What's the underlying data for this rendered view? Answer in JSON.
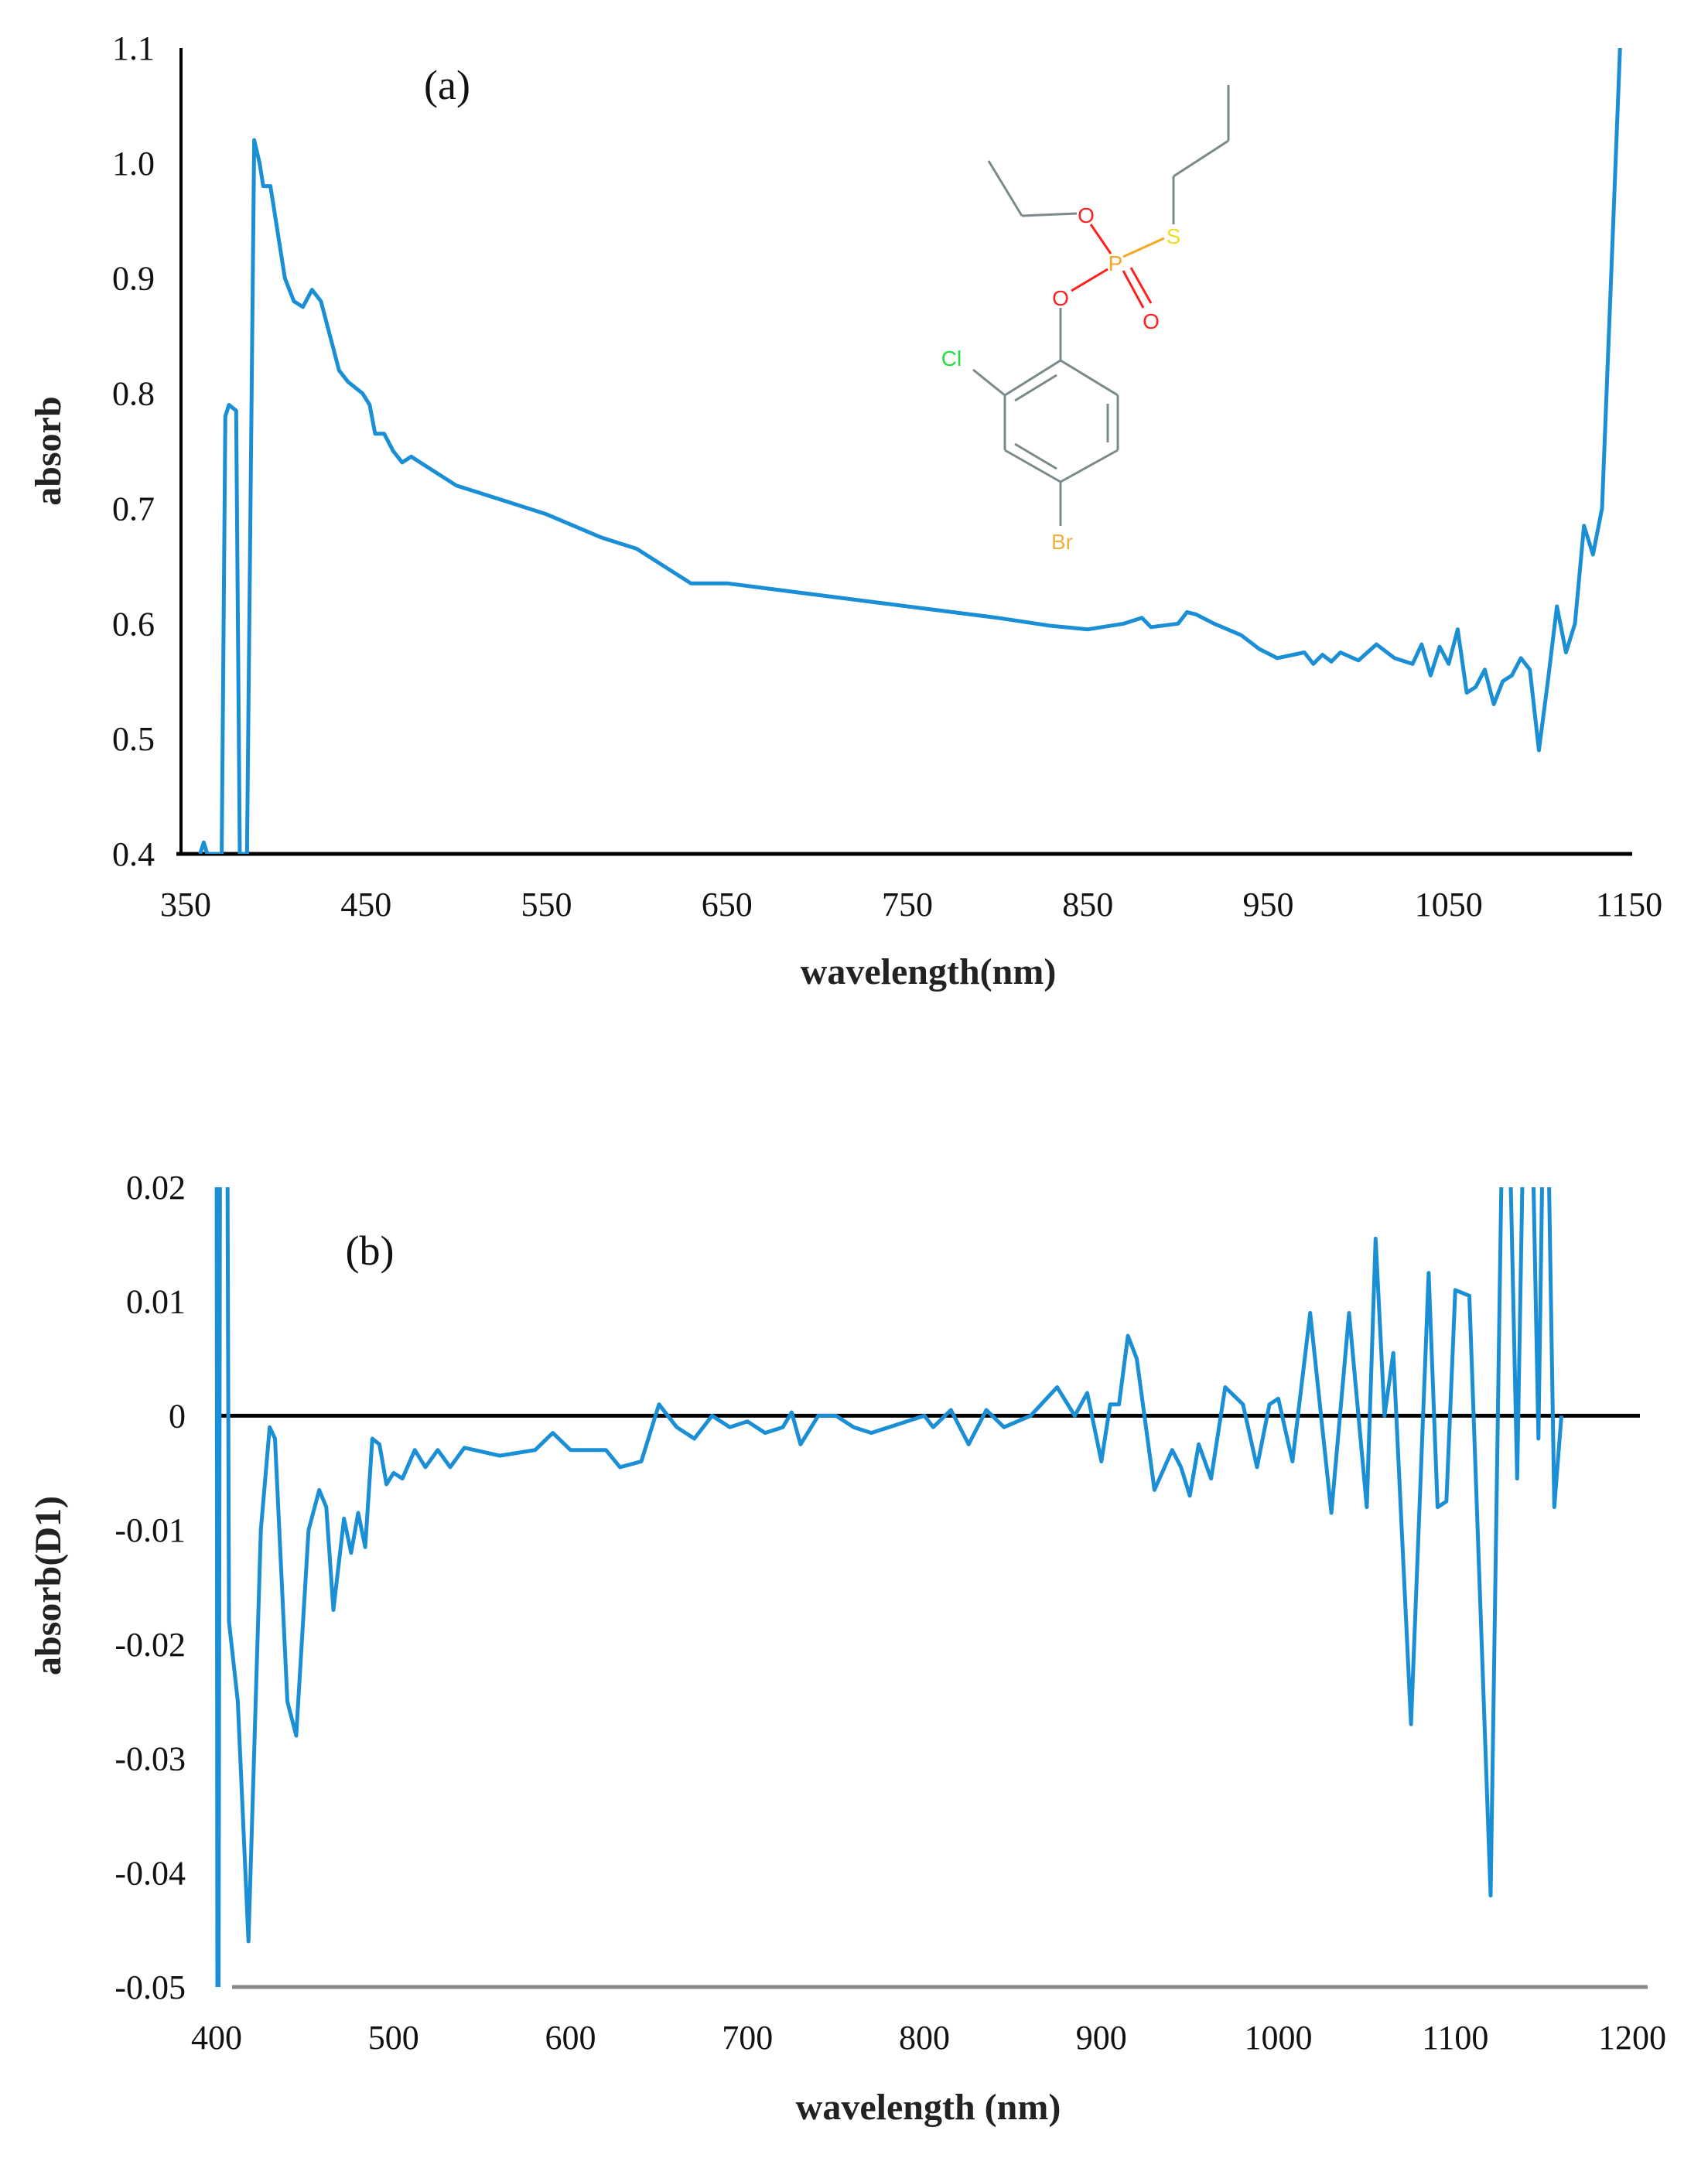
{
  "chart_data": [
    {
      "type": "line",
      "panel_label": "(a)",
      "xlabel": "wavelength(nm)",
      "ylabel": "absorb",
      "xlim": [
        350,
        1150
      ],
      "ylim": [
        0.4,
        1.1
      ],
      "xticks": [
        "350",
        "450",
        "550",
        "650",
        "750",
        "850",
        "950",
        "1050",
        "1150"
      ],
      "yticks": [
        "0.4",
        "0.5",
        "0.6",
        "0.7",
        "0.8",
        "0.9",
        "1.0",
        "1.1"
      ],
      "line_color": "#1a8fd6",
      "grid": false,
      "points": [
        [
          358,
          0.4
        ],
        [
          360,
          0.41
        ],
        [
          362,
          0.4
        ],
        [
          370,
          0.4
        ],
        [
          372,
          0.78
        ],
        [
          374,
          0.79
        ],
        [
          378,
          0.785
        ],
        [
          380,
          0.4
        ],
        [
          384,
          0.4
        ],
        [
          388,
          1.02
        ],
        [
          391,
          1.0
        ],
        [
          393,
          0.98
        ],
        [
          397,
          0.98
        ],
        [
          400,
          0.95
        ],
        [
          405,
          0.9
        ],
        [
          410,
          0.88
        ],
        [
          415,
          0.875
        ],
        [
          420,
          0.89
        ],
        [
          425,
          0.88
        ],
        [
          430,
          0.85
        ],
        [
          435,
          0.82
        ],
        [
          440,
          0.81
        ],
        [
          448,
          0.8
        ],
        [
          452,
          0.79
        ],
        [
          455,
          0.765
        ],
        [
          460,
          0.765
        ],
        [
          465,
          0.75
        ],
        [
          470,
          0.74
        ],
        [
          475,
          0.745
        ],
        [
          480,
          0.74
        ],
        [
          500,
          0.72
        ],
        [
          520,
          0.71
        ],
        [
          550,
          0.695
        ],
        [
          580,
          0.675
        ],
        [
          600,
          0.665
        ],
        [
          620,
          0.645
        ],
        [
          630,
          0.635
        ],
        [
          650,
          0.635
        ],
        [
          700,
          0.625
        ],
        [
          750,
          0.615
        ],
        [
          800,
          0.605
        ],
        [
          830,
          0.598
        ],
        [
          850,
          0.595
        ],
        [
          870,
          0.6
        ],
        [
          880,
          0.605
        ],
        [
          885,
          0.597
        ],
        [
          900,
          0.6
        ],
        [
          905,
          0.61
        ],
        [
          910,
          0.608
        ],
        [
          920,
          0.6
        ],
        [
          935,
          0.59
        ],
        [
          945,
          0.578
        ],
        [
          955,
          0.57
        ],
        [
          970,
          0.575
        ],
        [
          975,
          0.565
        ],
        [
          980,
          0.573
        ],
        [
          985,
          0.567
        ],
        [
          990,
          0.575
        ],
        [
          1000,
          0.568
        ],
        [
          1010,
          0.582
        ],
        [
          1020,
          0.57
        ],
        [
          1030,
          0.565
        ],
        [
          1035,
          0.582
        ],
        [
          1040,
          0.555
        ],
        [
          1045,
          0.58
        ],
        [
          1050,
          0.565
        ],
        [
          1055,
          0.595
        ],
        [
          1060,
          0.54
        ],
        [
          1065,
          0.545
        ],
        [
          1070,
          0.56
        ],
        [
          1075,
          0.53
        ],
        [
          1080,
          0.55
        ],
        [
          1085,
          0.555
        ],
        [
          1090,
          0.57
        ],
        [
          1095,
          0.56
        ],
        [
          1100,
          0.49
        ],
        [
          1105,
          0.55
        ],
        [
          1110,
          0.615
        ],
        [
          1115,
          0.575
        ],
        [
          1120,
          0.6
        ],
        [
          1125,
          0.685
        ],
        [
          1130,
          0.66
        ],
        [
          1135,
          0.7
        ],
        [
          1140,
          0.9
        ],
        [
          1145,
          1.1
        ]
      ],
      "inset_molecule": {
        "atoms": [
          "O",
          "P",
          "S",
          "O",
          "O",
          "Cl",
          "Br"
        ],
        "colors": {
          "O": "#ff2020",
          "P": "#f5a623",
          "S": "#e8e020",
          "Cl": "#20e040",
          "Br": "#f0b040",
          "bond": "#7a8a8a"
        }
      }
    },
    {
      "type": "line",
      "panel_label": "(b)",
      "xlabel": "wavelength (nm)",
      "ylabel": "absorb(D1)",
      "xlim": [
        400,
        1200
      ],
      "ylim": [
        -0.05,
        0.02
      ],
      "xticks": [
        "400",
        "500",
        "600",
        "700",
        "800",
        "900",
        "1000",
        "1100",
        "1200"
      ],
      "yticks": [
        "-0.05",
        "-0.04",
        "-0.03",
        "-0.02",
        "-0.01",
        "0",
        "0.01",
        "0.02"
      ],
      "line_color": "#1a8fd6",
      "zero_line": true,
      "grid": false,
      "points": [
        [
          400,
          0.03
        ],
        [
          400.5,
          -0.06
        ],
        [
          401,
          -0.06
        ],
        [
          402,
          0.03
        ],
        [
          406,
          0.03
        ],
        [
          407,
          -0.018
        ],
        [
          412,
          -0.025
        ],
        [
          418,
          -0.046
        ],
        [
          425,
          -0.01
        ],
        [
          430,
          -0.001
        ],
        [
          433,
          -0.002
        ],
        [
          440,
          -0.025
        ],
        [
          445,
          -0.028
        ],
        [
          452,
          -0.01
        ],
        [
          458,
          -0.0065
        ],
        [
          462,
          -0.008
        ],
        [
          466,
          -0.017
        ],
        [
          472,
          -0.009
        ],
        [
          476,
          -0.012
        ],
        [
          480,
          -0.0085
        ],
        [
          484,
          -0.0115
        ],
        [
          488,
          -0.002
        ],
        [
          492,
          -0.0025
        ],
        [
          496,
          -0.006
        ],
        [
          500,
          -0.005
        ],
        [
          505,
          -0.0055
        ],
        [
          512,
          -0.003
        ],
        [
          518,
          -0.0045
        ],
        [
          525,
          -0.003
        ],
        [
          532,
          -0.0045
        ],
        [
          540,
          -0.0028
        ],
        [
          560,
          -0.0035
        ],
        [
          580,
          -0.003
        ],
        [
          590,
          -0.0015
        ],
        [
          600,
          -0.003
        ],
        [
          620,
          -0.003
        ],
        [
          628,
          -0.0045
        ],
        [
          640,
          -0.004
        ],
        [
          650,
          0.001
        ],
        [
          660,
          -0.001
        ],
        [
          670,
          -0.002
        ],
        [
          680,
          0
        ],
        [
          690,
          -0.001
        ],
        [
          700,
          -0.0005
        ],
        [
          710,
          -0.0015
        ],
        [
          720,
          -0.001
        ],
        [
          725,
          0.0003
        ],
        [
          730,
          -0.0025
        ],
        [
          740,
          0
        ],
        [
          750,
          0
        ],
        [
          760,
          -0.001
        ],
        [
          770,
          -0.0015
        ],
        [
          780,
          -0.001
        ],
        [
          800,
          0
        ],
        [
          805,
          -0.001
        ],
        [
          815,
          0.0005
        ],
        [
          825,
          -0.0025
        ],
        [
          835,
          0.0005
        ],
        [
          845,
          -0.001
        ],
        [
          860,
          0
        ],
        [
          875,
          0.0025
        ],
        [
          885,
          0
        ],
        [
          892,
          0.002
        ],
        [
          900,
          -0.004
        ],
        [
          905,
          0.001
        ],
        [
          910,
          0.001
        ],
        [
          915,
          0.007
        ],
        [
          920,
          0.005
        ],
        [
          930,
          -0.0065
        ],
        [
          940,
          -0.003
        ],
        [
          945,
          -0.0045
        ],
        [
          950,
          -0.007
        ],
        [
          955,
          -0.0025
        ],
        [
          962,
          -0.0055
        ],
        [
          970,
          0.0025
        ],
        [
          980,
          0.001
        ],
        [
          988,
          -0.0045
        ],
        [
          995,
          0.001
        ],
        [
          1000,
          0.0015
        ],
        [
          1008,
          -0.004
        ],
        [
          1018,
          0.009
        ],
        [
          1030,
          -0.0085
        ],
        [
          1040,
          0.009
        ],
        [
          1050,
          -0.008
        ],
        [
          1055,
          0.0155
        ],
        [
          1060,
          0
        ],
        [
          1065,
          0.0055
        ],
        [
          1075,
          -0.027
        ],
        [
          1085,
          0.0125
        ],
        [
          1090,
          -0.008
        ],
        [
          1095,
          -0.0075
        ],
        [
          1100,
          0.011
        ],
        [
          1108,
          0.0105
        ],
        [
          1120,
          -0.042
        ],
        [
          1127,
          0.03
        ],
        [
          1130,
          0.03
        ],
        [
          1135,
          -0.0055
        ],
        [
          1139,
          0.03
        ],
        [
          1143,
          0.03
        ],
        [
          1147,
          -0.002
        ],
        [
          1150,
          0.03
        ],
        [
          1152,
          0.03
        ],
        [
          1156,
          -0.008
        ],
        [
          1160,
          0
        ]
      ]
    }
  ]
}
